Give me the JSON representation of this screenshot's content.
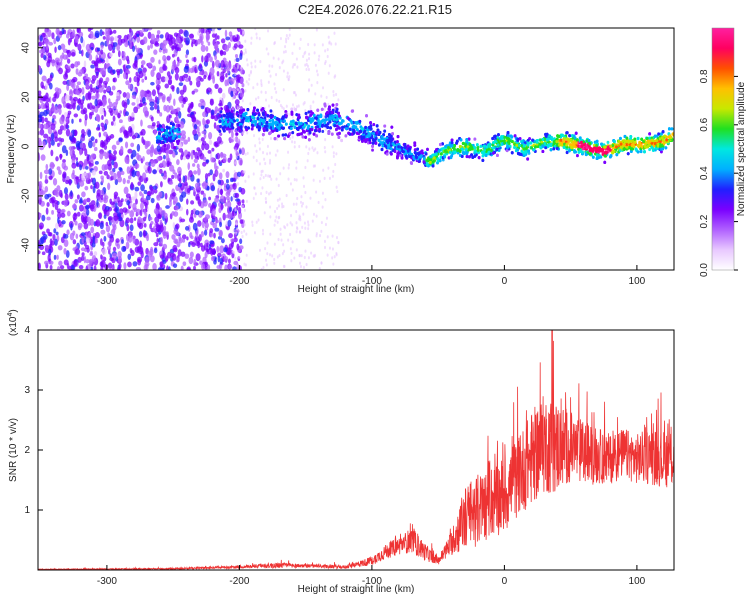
{
  "title": "C2E4.2026.076.22.21.R15",
  "chart_data": [
    {
      "type": "heatmap",
      "xlabel": "Height of straight line (km)",
      "ylabel": "Frequency (Hz)",
      "xlim": [
        -352,
        128
      ],
      "ylim": [
        -50,
        48
      ],
      "xticks": [
        -300,
        -200,
        -100,
        0,
        100
      ],
      "yticks": [
        -40,
        -20,
        0,
        20,
        40
      ],
      "colorbar": {
        "label": "Normalized spectral amplitude",
        "range": [
          0,
          1
        ],
        "ticks": [
          "0.0",
          "0.2",
          "0.4",
          "0.6",
          "0.8"
        ],
        "colors": [
          "#ffffff",
          "#e8c8ff",
          "#b060ff",
          "#7a00ff",
          "#2020ff",
          "#00b0ff",
          "#00e8e0",
          "#20e020",
          "#c8e800",
          "#ffc000",
          "#ff5000",
          "#ff0060",
          "#ff20a0"
        ]
      },
      "ridge": {
        "x": [
          -260,
          -250,
          -210,
          -190,
          -170,
          -150,
          -130,
          -110,
          -90,
          -70,
          -55,
          -45,
          -30,
          -15,
          0,
          15,
          30,
          45,
          60,
          75,
          90,
          105,
          120,
          128
        ],
        "center_freq": [
          5,
          5,
          10,
          11,
          9,
          9,
          11,
          8,
          2,
          -3,
          -6,
          -2,
          0,
          -2,
          3,
          -1,
          2,
          2,
          0,
          -2,
          1,
          1,
          2,
          5
        ]
      }
    },
    {
      "type": "line",
      "xlabel": "Height of straight line (km)",
      "ylabel": "SNR (10 * v/v)",
      "y_multiplier": "(x10",
      "y_multiplier_exp": "4",
      "y_multiplier_close": ")",
      "xlim": [
        -352,
        128
      ],
      "ylim": [
        0,
        4
      ],
      "xticks": [
        -300,
        -200,
        -100,
        0,
        100
      ],
      "yticks": [
        1,
        2,
        3,
        4
      ],
      "color": "#ee3333",
      "envelope": {
        "x": [
          -352,
          -250,
          -200,
          -170,
          -150,
          -120,
          -100,
          -90,
          -80,
          -70,
          -60,
          -50,
          -40,
          -30,
          -20,
          -10,
          0,
          10,
          20,
          30,
          40,
          50,
          60,
          70,
          80,
          90,
          100,
          110,
          120,
          128
        ],
        "mean": [
          0.01,
          0.02,
          0.05,
          0.08,
          0.07,
          0.05,
          0.15,
          0.3,
          0.4,
          0.5,
          0.3,
          0.15,
          0.45,
          0.85,
          1.0,
          1.15,
          1.25,
          1.55,
          1.85,
          2.1,
          2.05,
          2.05,
          1.95,
          1.9,
          1.85,
          1.95,
          1.85,
          1.9,
          1.85,
          1.9
        ],
        "amp": [
          0.01,
          0.02,
          0.04,
          0.08,
          0.05,
          0.05,
          0.12,
          0.2,
          0.25,
          0.35,
          0.25,
          0.1,
          0.35,
          0.9,
          1.0,
          1.0,
          1.1,
          1.1,
          1.3,
          1.4,
          1.3,
          1.0,
          0.9,
          0.8,
          0.7,
          0.7,
          0.7,
          0.8,
          0.8,
          0.9
        ],
        "peak_x": 36,
        "peak_y": 4.0
      }
    }
  ]
}
